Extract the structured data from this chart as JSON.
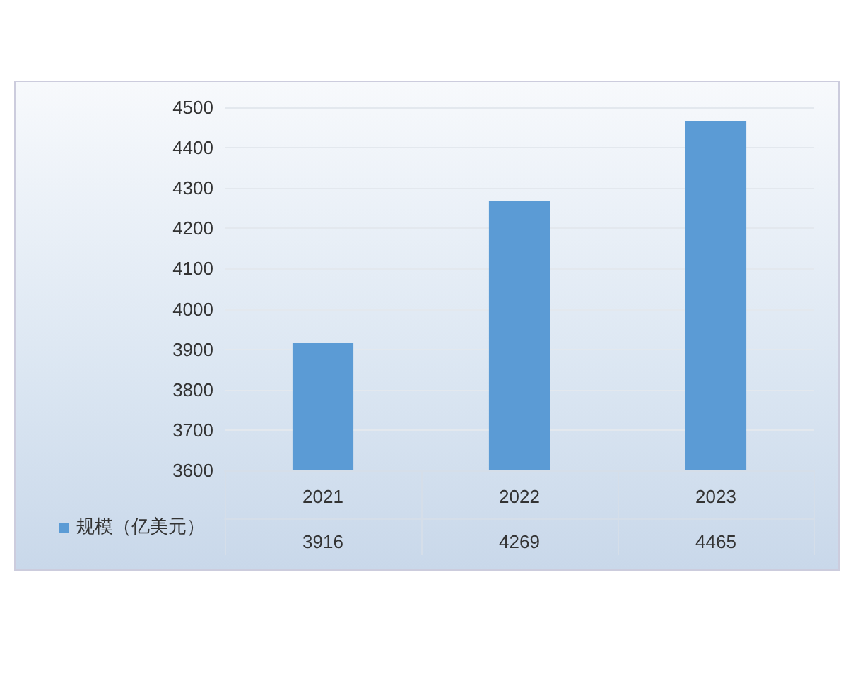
{
  "chart_data": {
    "type": "bar",
    "categories": [
      "2021",
      "2022",
      "2023"
    ],
    "series": [
      {
        "name": "规模（亿美元）",
        "color": "#5b9bd5",
        "values": [
          3916,
          4269,
          4465
        ]
      }
    ],
    "ylim": [
      3600,
      4500
    ],
    "yticks": [
      3600,
      3700,
      3800,
      3900,
      4000,
      4100,
      4200,
      4300,
      4400,
      4500
    ],
    "grid": "y",
    "legend": "bottom left",
    "data_labels": true
  }
}
